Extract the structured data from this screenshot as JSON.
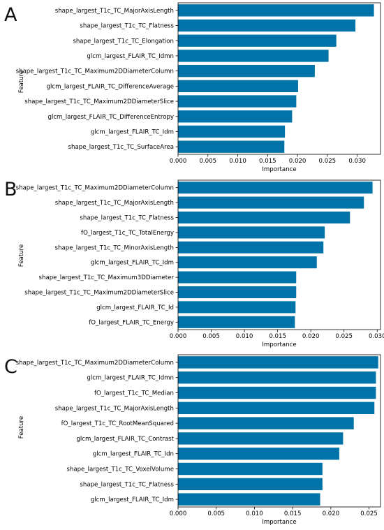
{
  "chart_data": [
    {
      "type": "bar",
      "orientation": "horizontal",
      "panel_label": "A",
      "categories": [
        "shape_largest_T1c_TC_MajorAxisLength",
        "shape_largest_T1c_TC_Flatness",
        "shape_largest_T1c_TC_Elongation",
        "glcm_largest_FLAIR_TC_Idmn",
        "shape_largest_T1c_TC_Maximum2DDiameterColumn",
        "glcm_largest_FLAIR_TC_DifferenceAverage",
        "shape_largest_T1c_TC_Maximum2DDiameterSlice",
        "glcm_largest_FLAIR_TC_DifferenceEntropy",
        "glcm_largest_FLAIR_TC_Idm",
        "shape_largest_T1c_TC_SurfaceArea"
      ],
      "values": [
        0.0328,
        0.0297,
        0.0265,
        0.0252,
        0.0229,
        0.0201,
        0.0198,
        0.0191,
        0.0179,
        0.0178
      ],
      "xlabel": "Importance",
      "ylabel": "Feature",
      "xlim": [
        0,
        0.0339
      ],
      "xticks": [
        "0.000",
        "0.005",
        "0.010",
        "0.015",
        "0.020",
        "0.025",
        "0.030"
      ],
      "xtick_values": [
        0,
        0.005,
        0.01,
        0.015,
        0.02,
        0.025,
        0.03
      ],
      "grid": false,
      "bar_color": "#0273a8"
    },
    {
      "type": "bar",
      "orientation": "horizontal",
      "panel_label": "B",
      "categories": [
        "shape_largest_T1c_TC_Maximum2DDiameterColumn",
        "shape_largest_T1c_TC_MajorAxisLength",
        "shape_largest_T1c_TC_Flatness",
        "fO_largest_T1c_TC_TotalEnergy",
        "shape_largest_T1c_TC_MinorAxisLength",
        "glcm_largest_FLAIR_TC_Idm",
        "shape_largest_T1c_TC_Maximum3DDiameter",
        "shape_largest_T1c_TC_Maximum2DDiameterSlice",
        "glcm_largest_FLAIR_TC_Id",
        "fO_largest_FLAIR_TC_Energy"
      ],
      "values": [
        0.0293,
        0.028,
        0.0259,
        0.0221,
        0.0219,
        0.0209,
        0.0178,
        0.0178,
        0.0177,
        0.0176
      ],
      "xlabel": "Importance",
      "ylabel": "Feature",
      "xlim": [
        0,
        0.0305
      ],
      "xticks": [
        "0.000",
        "0.005",
        "0.010",
        "0.015",
        "0.020",
        "0.025",
        "0.030"
      ],
      "xtick_values": [
        0,
        0.005,
        0.01,
        0.015,
        0.02,
        0.025,
        0.03
      ],
      "grid": false,
      "bar_color": "#0273a8"
    },
    {
      "type": "bar",
      "orientation": "horizontal",
      "panel_label": "C",
      "categories": [
        "shape_largest_T1c_TC_Maximum2DDiameterColumn",
        "glcm_largest_FLAIR_TC_Idmn",
        "fO_largest_T1c_TC_Median",
        "shape_largest_T1c_TC_MajorAxisLength",
        "fO_largest_T1c_TC_RootMeanSquared",
        "glcm_largest_FLAIR_TC_Contrast",
        "glcm_largest_FLAIR_TC_Idn",
        "shape_largest_T1c_TC_VoxelVolume",
        "shape_largest_T1c_TC_Flatness",
        "glcm_largest_FLAIR_TC_Idm"
      ],
      "values": [
        0.0262,
        0.0259,
        0.0259,
        0.0257,
        0.023,
        0.0216,
        0.0211,
        0.0189,
        0.0189,
        0.0186
      ],
      "xlabel": "Importance",
      "ylabel": "Feature",
      "xlim": [
        0,
        0.0265
      ],
      "xticks": [
        "0.000",
        "0.005",
        "0.010",
        "0.015",
        "0.020",
        "0.025"
      ],
      "xtick_values": [
        0,
        0.005,
        0.01,
        0.015,
        0.02,
        0.025
      ],
      "grid": false,
      "bar_color": "#0273a8"
    }
  ]
}
